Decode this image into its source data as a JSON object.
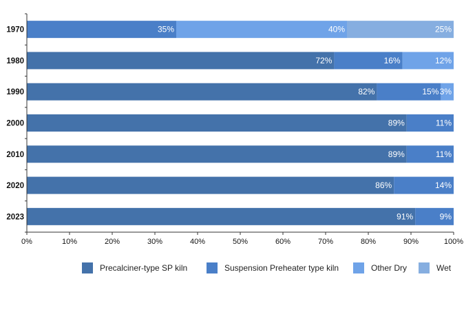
{
  "chart_data": {
    "type": "bar",
    "orientation": "horizontal",
    "stacked": "percent",
    "categories": [
      "1970",
      "1980",
      "1990",
      "2000",
      "2010",
      "2020",
      "2023"
    ],
    "series": [
      {
        "name": "Precalciner-type SP kiln",
        "color": "#4472aa",
        "values": [
          0,
          72,
          82,
          89,
          89,
          86,
          91
        ],
        "labels": [
          "",
          "72%",
          "82%",
          "89%",
          "89%",
          "86%",
          "91%"
        ]
      },
      {
        "name": "Suspension Preheater type kiln",
        "color": "#4a7fc8",
        "values": [
          35,
          16,
          15,
          11,
          11,
          14,
          9
        ],
        "labels": [
          "35%",
          "16%",
          "15%",
          "11%",
          "11%",
          "14%",
          "9%"
        ]
      },
      {
        "name": "Other Dry",
        "color": "#6fa3e8",
        "values": [
          40,
          12,
          3,
          0,
          0,
          0,
          0
        ],
        "labels": [
          "40%",
          "12%",
          "3%",
          "",
          "",
          "",
          ""
        ]
      },
      {
        "name": "Wet",
        "color": "#86aee0",
        "values": [
          25,
          0,
          0,
          0,
          0,
          0,
          0
        ],
        "labels": [
          "25%",
          "",
          "",
          "",
          "",
          "",
          ""
        ]
      }
    ],
    "xlim": [
      0,
      100
    ],
    "xticks": [
      0,
      10,
      20,
      30,
      40,
      50,
      60,
      70,
      80,
      90,
      100
    ],
    "xtick_labels": [
      "0%",
      "10%",
      "20%",
      "30%",
      "40%",
      "50%",
      "60%",
      "70%",
      "80%",
      "90%",
      "100%"
    ],
    "grid": false,
    "legend": "bottom"
  }
}
